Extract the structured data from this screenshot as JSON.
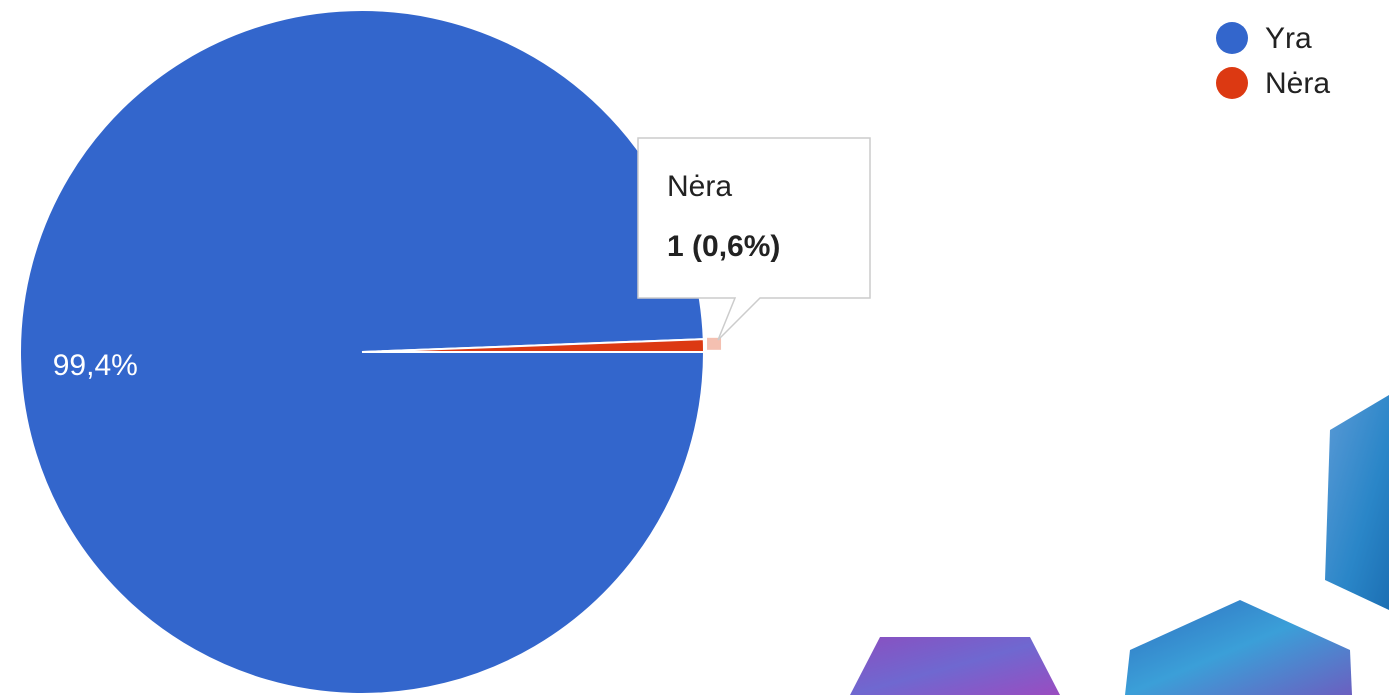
{
  "chart_data": {
    "type": "pie",
    "categories": [
      "Yra",
      "Nėra"
    ],
    "values": [
      99.4,
      0.6
    ],
    "value_labels": [
      "99,4%",
      null
    ],
    "colors": [
      "#3366cc",
      "#dc3912"
    ],
    "tooltip": "1 (0,6%)",
    "legend": "top-right"
  }
}
